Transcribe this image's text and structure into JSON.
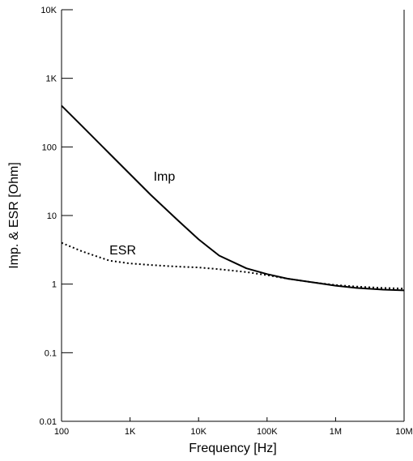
{
  "chart_data": {
    "type": "line",
    "xlabel": "Frequency  [Hz]",
    "ylabel": "Imp. & ESR  [Ohm]",
    "xscale": "log",
    "yscale": "log",
    "xlim": [
      100,
      10000000
    ],
    "ylim": [
      0.01,
      10000
    ],
    "grid": false,
    "x_ticks": [
      {
        "value": 100,
        "label": "100"
      },
      {
        "value": 1000,
        "label": "1K"
      },
      {
        "value": 10000,
        "label": "10K"
      },
      {
        "value": 100000,
        "label": "100K"
      },
      {
        "value": 1000000,
        "label": "1M"
      },
      {
        "value": 10000000,
        "label": "10M"
      }
    ],
    "y_ticks": [
      {
        "value": 0.01,
        "label": "0.01"
      },
      {
        "value": 0.1,
        "label": "0.1"
      },
      {
        "value": 1,
        "label": "1"
      },
      {
        "value": 10,
        "label": "10"
      },
      {
        "value": 100,
        "label": "100"
      },
      {
        "value": 1000,
        "label": "1K"
      },
      {
        "value": 10000,
        "label": "10K"
      }
    ],
    "series": [
      {
        "name": "Imp",
        "style": "solid",
        "label_at": [
          2200,
          32
        ],
        "x": [
          100,
          200,
          500,
          1000,
          2000,
          5000,
          10000,
          20000,
          50000,
          100000,
          200000,
          500000,
          1000000,
          2000000,
          5000000,
          10000000
        ],
        "y": [
          400,
          200,
          80,
          40,
          20,
          8.5,
          4.5,
          2.6,
          1.7,
          1.4,
          1.2,
          1.05,
          0.95,
          0.88,
          0.83,
          0.81
        ]
      },
      {
        "name": "ESR",
        "style": "dotted",
        "label_at": [
          500,
          2.7
        ],
        "x": [
          100,
          200,
          500,
          1000,
          2000,
          5000,
          10000,
          20000,
          50000,
          100000,
          200000,
          500000,
          1000000,
          2000000,
          5000000,
          10000000
        ],
        "y": [
          4,
          3,
          2.2,
          2,
          1.9,
          1.8,
          1.75,
          1.65,
          1.5,
          1.35,
          1.2,
          1.05,
          0.97,
          0.92,
          0.88,
          0.86
        ]
      }
    ]
  }
}
